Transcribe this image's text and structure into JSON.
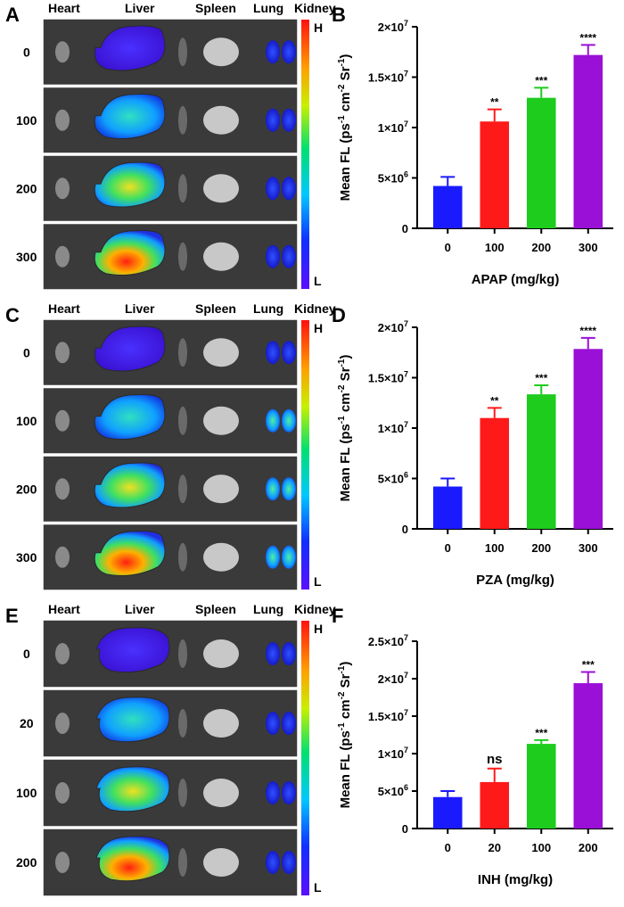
{
  "blocks": [
    {
      "image": {
        "letter": "A",
        "organs": [
          "Heart",
          "Liver",
          "Spleen",
          "Lung",
          "Kidney"
        ],
        "doses": [
          "0",
          "100",
          "200",
          "300"
        ],
        "scale_high": "H",
        "scale_low": "L"
      },
      "chart": {
        "letter": "B",
        "type": "bar",
        "categories": [
          "0",
          "100",
          "200",
          "300"
        ],
        "values": [
          4200000,
          10600000,
          12950000,
          17200000
        ],
        "errors": [
          900000,
          1200000,
          1000000,
          1000000
        ],
        "significance": [
          "",
          "**",
          "***",
          "****"
        ],
        "colors": [
          "#1a1aff",
          "#ff1a1a",
          "#1ecc1e",
          "#9a10d6"
        ],
        "ylim": [
          0,
          20000000
        ],
        "yticks": [
          {
            "value": 0,
            "base": "0",
            "exp": ""
          },
          {
            "value": 5000000,
            "base": "5×10",
            "exp": "6"
          },
          {
            "value": 10000000,
            "base": "1×10",
            "exp": "7"
          },
          {
            "value": 15000000,
            "base": "1.5×10",
            "exp": "7"
          },
          {
            "value": 20000000,
            "base": "2×10",
            "exp": "7"
          }
        ],
        "ylabel": {
          "t1": "Mean FL (ps",
          "s1": "-1",
          "t2": " cm",
          "s2": "-2",
          "t3": " Sr",
          "s3": "-1",
          "t4": ")"
        },
        "xlabel": "APAP (mg/kg)"
      }
    },
    {
      "image": {
        "letter": "C",
        "organs": [
          "Heart",
          "Liver",
          "Spleen",
          "Lung",
          "Kidney"
        ],
        "doses": [
          "0",
          "100",
          "200",
          "300"
        ],
        "scale_high": "H",
        "scale_low": "L"
      },
      "chart": {
        "letter": "D",
        "type": "bar",
        "categories": [
          "0",
          "100",
          "200",
          "300"
        ],
        "values": [
          4200000,
          11000000,
          13350000,
          17850000
        ],
        "errors": [
          800000,
          1000000,
          900000,
          1100000
        ],
        "significance": [
          "",
          "**",
          "***",
          "****"
        ],
        "colors": [
          "#1a1aff",
          "#ff1a1a",
          "#1ecc1e",
          "#9a10d6"
        ],
        "ylim": [
          0,
          20000000
        ],
        "yticks": [
          {
            "value": 0,
            "base": "0",
            "exp": ""
          },
          {
            "value": 5000000,
            "base": "5×10",
            "exp": "6"
          },
          {
            "value": 10000000,
            "base": "1×10",
            "exp": "7"
          },
          {
            "value": 15000000,
            "base": "1.5×10",
            "exp": "7"
          },
          {
            "value": 20000000,
            "base": "2×10",
            "exp": "7"
          }
        ],
        "ylabel": {
          "t1": "Mean FL (ps",
          "s1": "-1",
          "t2": " cm",
          "s2": "-2",
          "t3": " Sr",
          "s3": "-1",
          "t4": ")"
        },
        "xlabel": "PZA (mg/kg)"
      }
    },
    {
      "image": {
        "letter": "E",
        "organs": [
          "Heart",
          "Liver",
          "Spleen",
          "Lung",
          "Kidney"
        ],
        "doses": [
          "0",
          "20",
          "100",
          "200"
        ],
        "scale_high": "H",
        "scale_low": "L"
      },
      "chart": {
        "letter": "F",
        "type": "bar",
        "categories": [
          "0",
          "20",
          "100",
          "200"
        ],
        "values": [
          4200000,
          6200000,
          11300000,
          19400000
        ],
        "errors": [
          800000,
          1800000,
          500000,
          1500000
        ],
        "significance": [
          "",
          "ns",
          "***",
          "***"
        ],
        "colors": [
          "#1a1aff",
          "#ff1a1a",
          "#1ecc1e",
          "#9a10d6"
        ],
        "ylim": [
          0,
          25000000
        ],
        "yticks": [
          {
            "value": 0,
            "base": "0",
            "exp": ""
          },
          {
            "value": 5000000,
            "base": "5×10",
            "exp": "6"
          },
          {
            "value": 10000000,
            "base": "1×10",
            "exp": "7"
          },
          {
            "value": 15000000,
            "base": "1.5×10",
            "exp": "7"
          },
          {
            "value": 20000000,
            "base": "2×10",
            "exp": "7"
          },
          {
            "value": 25000000,
            "base": "2.5×10",
            "exp": "7"
          }
        ],
        "ylabel": {
          "t1": "Mean FL (ps",
          "s1": "-1",
          "t2": " cm",
          "s2": "-2",
          "t3": " Sr",
          "s3": "-1",
          "t4": ")"
        },
        "xlabel": "INH (mg/kg)"
      }
    }
  ],
  "chart_data": [
    {
      "type": "bar",
      "title": "B",
      "categories": [
        "0",
        "100",
        "200",
        "300"
      ],
      "values": [
        4200000,
        10600000,
        12950000,
        17200000
      ],
      "xlabel": "APAP (mg/kg)",
      "ylabel": "Mean FL (ps-1 cm-2 Sr-1)",
      "ylim": [
        0,
        20000000
      ]
    },
    {
      "type": "bar",
      "title": "D",
      "categories": [
        "0",
        "100",
        "200",
        "300"
      ],
      "values": [
        4200000,
        11000000,
        13350000,
        17850000
      ],
      "xlabel": "PZA (mg/kg)",
      "ylabel": "Mean FL (ps-1 cm-2 Sr-1)",
      "ylim": [
        0,
        20000000
      ]
    },
    {
      "type": "bar",
      "title": "F",
      "categories": [
        "0",
        "20",
        "100",
        "200"
      ],
      "values": [
        4200000,
        6200000,
        11300000,
        19400000
      ],
      "xlabel": "INH (mg/kg)",
      "ylabel": "Mean FL (ps-1 cm-2 Sr-1)",
      "ylim": [
        0,
        25000000
      ]
    }
  ]
}
